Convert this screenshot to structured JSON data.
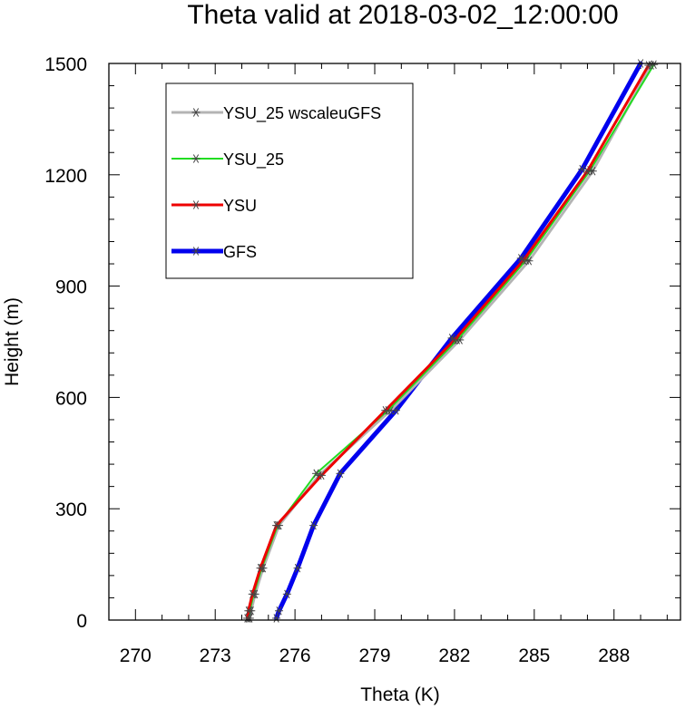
{
  "chart_data": {
    "type": "line",
    "title": "Theta valid at 2018-03-02_12:00:00",
    "xlabel": "Theta (K)",
    "ylabel": "Height (m)",
    "xlim": [
      269,
      290.5
    ],
    "ylim": [
      0,
      1500
    ],
    "xticks": [
      270,
      273,
      276,
      279,
      282,
      285,
      288
    ],
    "yticks": [
      0,
      300,
      600,
      900,
      1200,
      1500
    ],
    "xtick_labels": [
      "270",
      "273",
      "276",
      "279",
      "282",
      "285",
      "288"
    ],
    "ytick_labels": [
      "0",
      "300",
      "600",
      "900",
      "1200",
      "1500"
    ],
    "legend_position": "top-left",
    "series": [
      {
        "name": "YSU_25 wscaleuGFS",
        "color": "#b4b4b4",
        "width": 3,
        "points": [
          [
            274.3,
            5
          ],
          [
            274.35,
            25
          ],
          [
            274.5,
            70
          ],
          [
            274.8,
            140
          ],
          [
            275.4,
            255
          ],
          [
            276.9,
            390
          ],
          [
            279.6,
            565
          ],
          [
            282.2,
            755
          ],
          [
            284.8,
            968
          ],
          [
            287.2,
            1210
          ],
          [
            289.4,
            1495
          ]
        ]
      },
      {
        "name": "YSU_25",
        "color": "#22dd22",
        "width": 2,
        "points": [
          [
            274.25,
            5
          ],
          [
            274.3,
            25
          ],
          [
            274.45,
            70
          ],
          [
            274.75,
            140
          ],
          [
            275.35,
            255
          ],
          [
            276.8,
            395
          ],
          [
            279.5,
            565
          ],
          [
            282.1,
            755
          ],
          [
            284.7,
            970
          ],
          [
            287.1,
            1212
          ],
          [
            289.5,
            1497
          ]
        ]
      },
      {
        "name": "YSU",
        "color": "#ee0000",
        "width": 3,
        "points": [
          [
            274.2,
            5
          ],
          [
            274.25,
            25
          ],
          [
            274.4,
            70
          ],
          [
            274.7,
            140
          ],
          [
            275.3,
            255
          ],
          [
            277.0,
            390
          ],
          [
            279.4,
            565
          ],
          [
            282.0,
            755
          ],
          [
            284.6,
            970
          ],
          [
            287.0,
            1210
          ],
          [
            289.3,
            1495
          ]
        ]
      },
      {
        "name": "GFS",
        "color": "#0000ee",
        "width": 5,
        "points": [
          [
            275.3,
            5
          ],
          [
            275.4,
            25
          ],
          [
            275.7,
            70
          ],
          [
            276.1,
            140
          ],
          [
            276.7,
            255
          ],
          [
            277.7,
            395
          ],
          [
            279.8,
            565
          ],
          [
            281.9,
            760
          ],
          [
            284.5,
            975
          ],
          [
            286.8,
            1215
          ],
          [
            289.0,
            1500
          ]
        ]
      }
    ]
  }
}
